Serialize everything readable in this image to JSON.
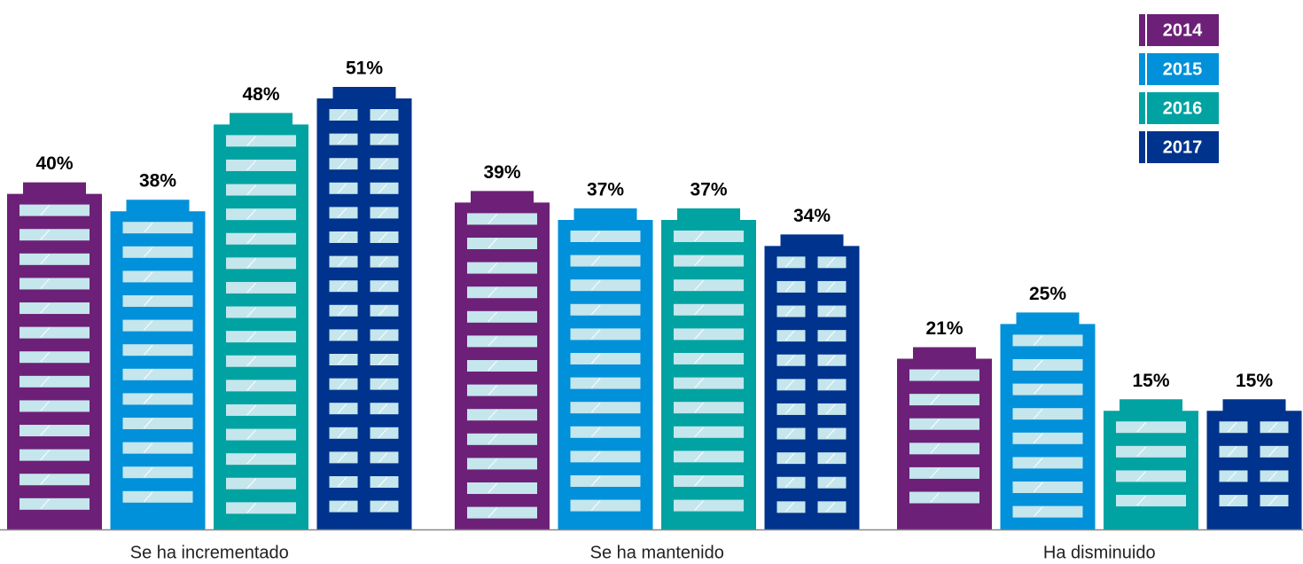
{
  "chart_data": {
    "type": "bar",
    "categories": [
      "Se ha incrementado",
      "Se ha mantenido",
      "Ha disminuido"
    ],
    "series": [
      {
        "name": "2014",
        "color": "#6d2077",
        "values": [
          40,
          39,
          21
        ],
        "value_labels": [
          "40%",
          "39%",
          "21%"
        ]
      },
      {
        "name": "2015",
        "color": "#0091da",
        "values": [
          38,
          37,
          25
        ],
        "value_labels": [
          "38%",
          "37%",
          "25%"
        ]
      },
      {
        "name": "2016",
        "color": "#00a3a1",
        "values": [
          48,
          37,
          15
        ],
        "value_labels": [
          "48%",
          "37%",
          "15%"
        ]
      },
      {
        "name": "2017",
        "color": "#00338d",
        "values": [
          51,
          34,
          15
        ],
        "value_labels": [
          "51%",
          "34%",
          "15%"
        ]
      }
    ],
    "legend": "top-right"
  }
}
